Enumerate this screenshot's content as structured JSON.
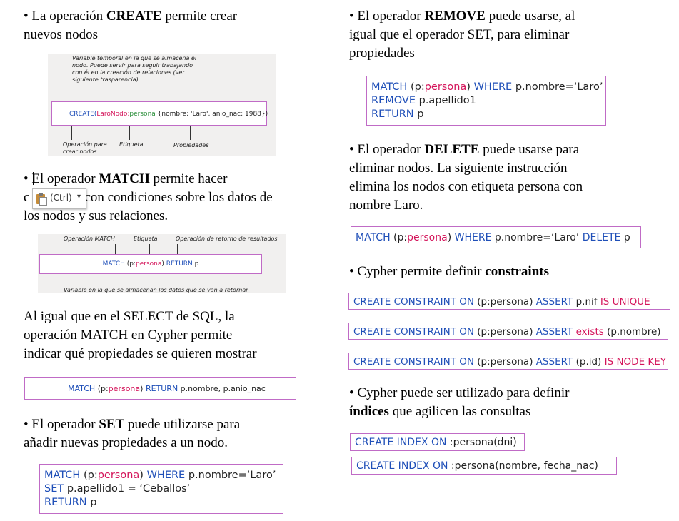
{
  "left": {
    "create_para": {
      "bullet": "•",
      "prefix": "La operación ",
      "bold": "CREATE",
      "suffix": " permite crear",
      "line2": "nuevos nodos"
    },
    "create_diagram": {
      "note": [
        "Variable temporal en la que se almacena el",
        "nodo. Puede servir para seguir trabajando",
        "con él en la creación de relaciones (ver",
        "siguiente trasparencia)."
      ],
      "code_kw": "CREATE(",
      "code_var": "LaroNodo:",
      "code_label": "persona",
      "code_props": " {nombre: 'Laro', anio_nac: 1988})",
      "lbl_op": [
        "Operación para",
        "crear nodos"
      ],
      "lbl_etiqueta": "Etiqueta",
      "lbl_props": "Propiedades"
    },
    "match_para": {
      "bullet": "•",
      "prefix": "El operador ",
      "bold": "MATCH",
      "suffix": " permite hacer",
      "line2a": "c",
      "line2b": "con condiciones sobre los datos de",
      "line3": "los nodos y sus relaciones."
    },
    "paste_tag": {
      "label": "(Ctrl)",
      "arrow": "▾"
    },
    "match_diagram": {
      "lbl_op": "Operación MATCH",
      "lbl_etiqueta": "Etiqueta",
      "lbl_return": "Operación de retorno de resultados",
      "code_kw1": "MATCH",
      "code_p": " (p:",
      "code_label": "persona",
      "code_close": ") ",
      "code_kw2": "RETURN",
      "code_end": " p",
      "lbl_var": "Variable en la que se almacenan los datos que se van a retornar"
    },
    "select_para": [
      "Al igual que en el SELECT de SQL, la",
      "operación MATCH en Cypher permite",
      "indicar qué propiedades se quieren mostrar"
    ],
    "select_code": {
      "kw1": "MATCH",
      "p": " (p:",
      "label": "persona",
      "close": ") ",
      "kw2": "RETURN",
      "end": " p.nombre, p.anio_nac"
    },
    "set_para": {
      "bullet": "•",
      "prefix": "El operador ",
      "bold": "SET",
      "suffix": " puede utilizarse para",
      "line2": "añadir nuevas propiedades a un nodo."
    },
    "set_code": {
      "l1_kw": "MATCH",
      "l1_p": " (p:",
      "l1_label": "persona",
      "l1_close": ") ",
      "l1_kw2": "WHERE",
      "l1_end": " p.nombre=‘Laro’",
      "l2_kw": "SET",
      "l2_end": " p.apellido1 = ‘Ceballos’",
      "l3_kw": "RETURN",
      "l3_end": " p"
    }
  },
  "right": {
    "remove_para": {
      "bullet": "•",
      "prefix": "El operador ",
      "bold": "REMOVE",
      "suffix": " puede usarse, al",
      "line2": "igual que el operador SET, para eliminar",
      "line3": "propiedades"
    },
    "remove_code": {
      "l1_kw": "MATCH",
      "l1_p": " (p:",
      "l1_label": "persona",
      "l1_close": ") ",
      "l1_kw2": "WHERE",
      "l1_end": " p.nombre=‘Laro’",
      "l2_kw": "REMOVE",
      "l2_end": " p.apellido1",
      "l3_kw": "RETURN",
      "l3_end": " p"
    },
    "delete_para": {
      "bullet": "•",
      "prefix": "El operador ",
      "bold": "DELETE",
      "suffix": " puede usarse para",
      "line2": "eliminar nodos. La siguiente instrucción",
      "line3": "elimina los nodos con etiqueta persona con",
      "line4": "nombre Laro."
    },
    "delete_code": {
      "kw1": "MATCH",
      "p": " (p:",
      "label": "persona",
      "close": ") ",
      "kw2": "WHERE",
      "mid": " p.nombre=‘Laro’ ",
      "kw3": "DELETE",
      "end": " p"
    },
    "constraints_para": {
      "bullet": "•",
      "prefix": "Cypher permite definir ",
      "bold": "constraints"
    },
    "constraint1": {
      "kw": "CREATE CONSTRAINT ON",
      "mid": " (p:persona) ",
      "kw2": "ASSERT",
      "mid2": " p.nif ",
      "red": "IS UNIQUE"
    },
    "constraint2": {
      "kw": "CREATE CONSTRAINT ON",
      "mid": " (p:persona) ",
      "kw2": "ASSERT",
      "red": " exists",
      "end": " (p.nombre)"
    },
    "constraint3": {
      "kw": "CREATE CONSTRAINT ON",
      "mid": " (p:persona) ",
      "kw2": "ASSERT",
      "mid2": " (p.id) ",
      "red": "IS NODE KEY"
    },
    "index_para": {
      "bullet": "•",
      "prefix": "Cypher puede ser utilizado para definir",
      "bold": "índices",
      "suffix": " que agilicen las consultas"
    },
    "index1": {
      "kw": "CREATE INDEX ON",
      "end": " :persona(dni)"
    },
    "index2": {
      "kw": "CREATE INDEX ON",
      "end": " :persona(nombre, fecha_nac)"
    }
  }
}
